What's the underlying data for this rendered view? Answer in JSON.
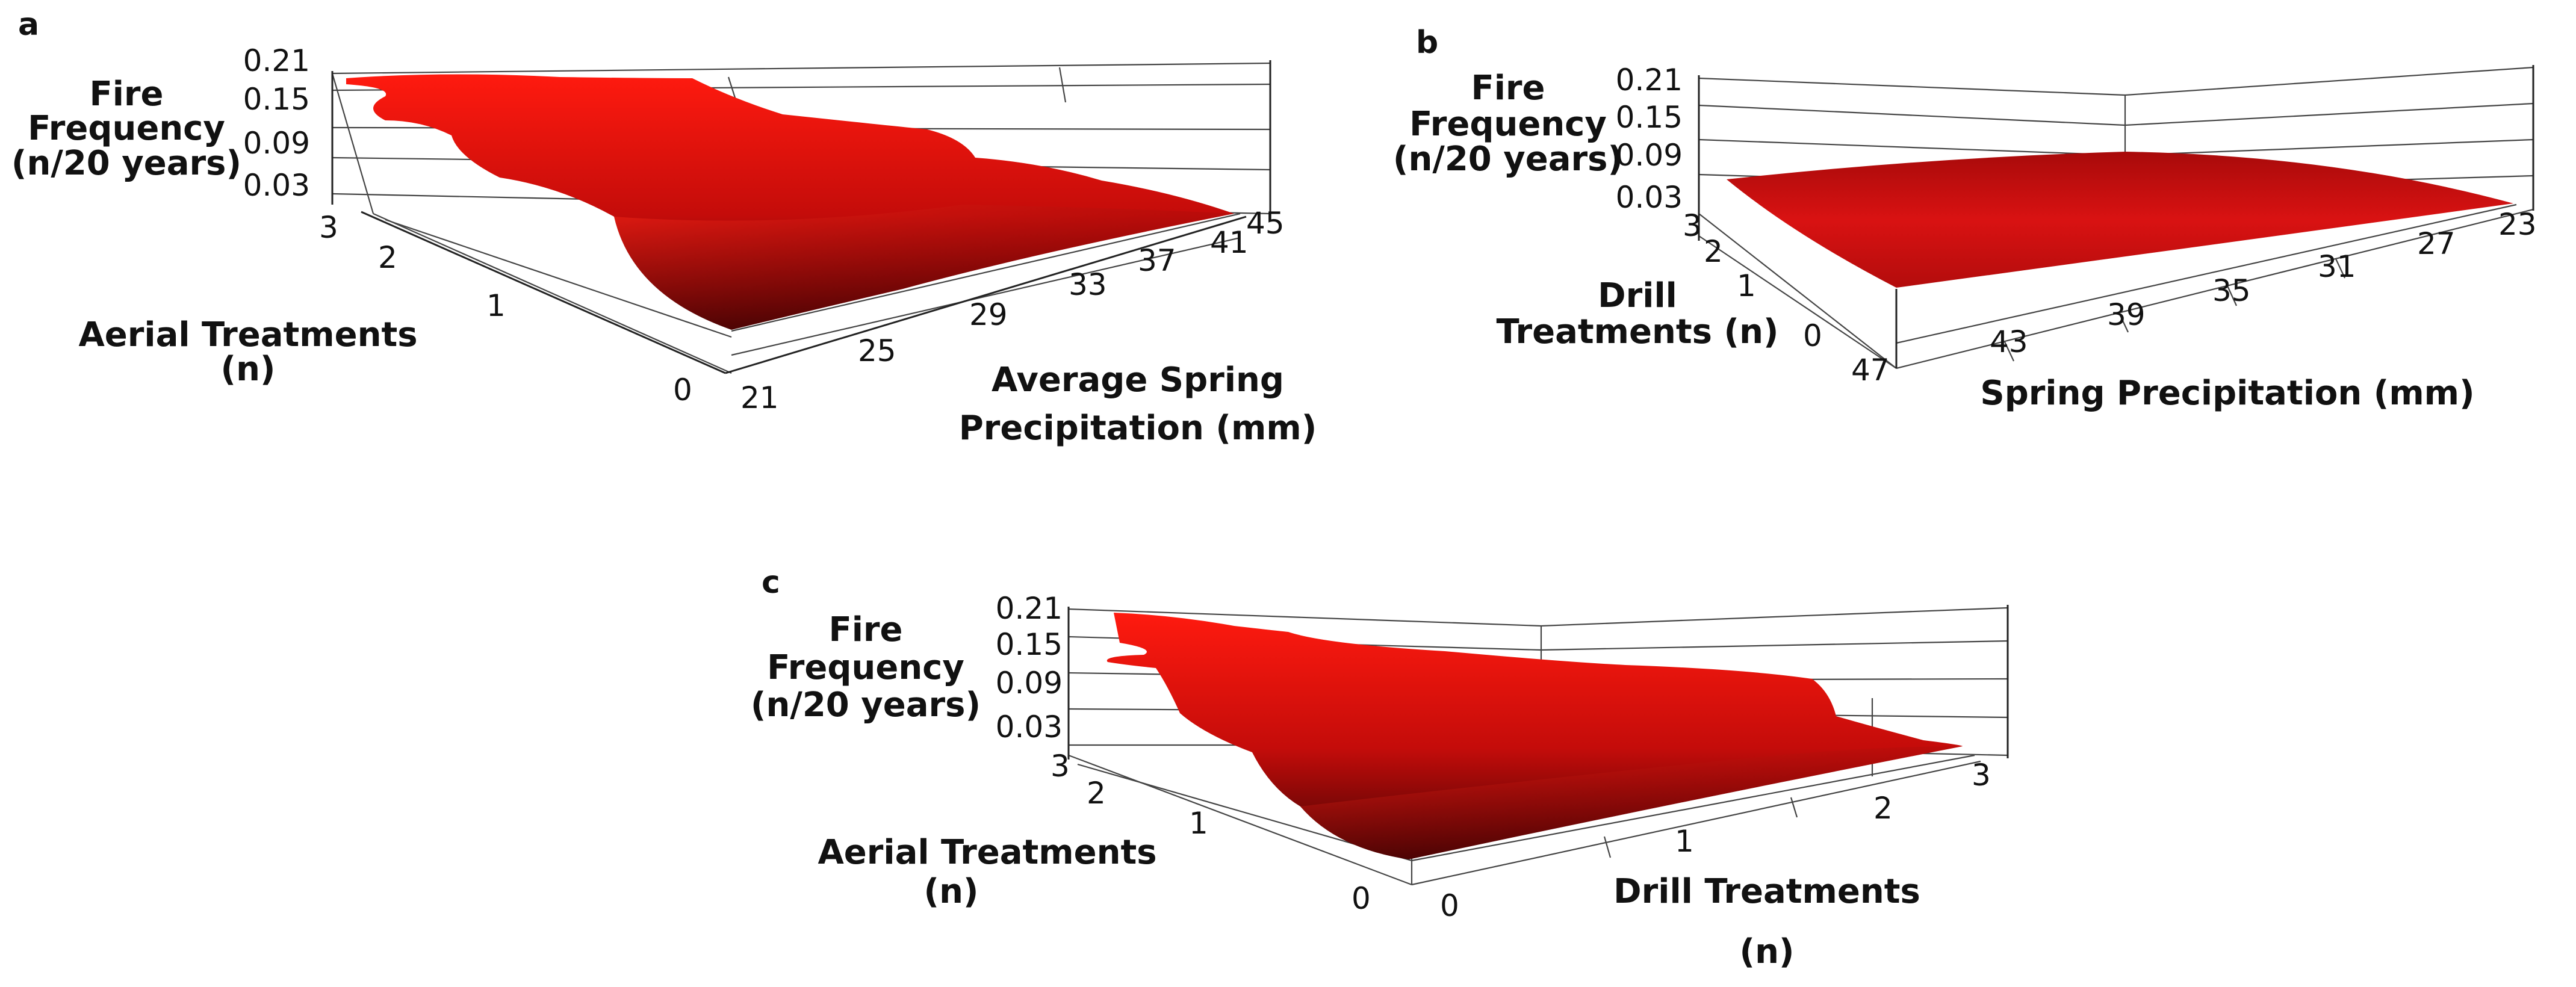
{
  "figure": {
    "panels": [
      "a",
      "b",
      "c"
    ]
  },
  "chart_data": [
    {
      "panel": "a",
      "type": "surface",
      "zlabel": [
        "Fire",
        "Frequency",
        "(n/20 years)"
      ],
      "zticks": [
        "0.21",
        "0.15",
        "0.09",
        "0.03"
      ],
      "zlim": [
        0,
        0.21
      ],
      "ylabel": [
        "Aerial Treatments",
        "(n)"
      ],
      "yticks": [
        "3",
        "2",
        "1",
        "0"
      ],
      "ylim": [
        0,
        3
      ],
      "xlabel": [
        "Average Spring",
        "Precipitation (mm)"
      ],
      "xticks": [
        "21",
        "25",
        "29",
        "33",
        "37",
        "41",
        "45"
      ],
      "xlim": [
        21,
        45
      ],
      "surface_color": "#e3140f",
      "surface_dark": "#3b0303"
    },
    {
      "panel": "b",
      "type": "surface",
      "zlabel": [
        "Fire",
        "Frequency",
        "(n/20 years)"
      ],
      "zticks": [
        "0.21",
        "0.15",
        "0.09",
        "0.03"
      ],
      "zlim": [
        0,
        0.21
      ],
      "ylabel": [
        "Drill",
        "Treatments (n)"
      ],
      "yticks": [
        "3",
        "2",
        "1",
        "0"
      ],
      "ylim": [
        0,
        3
      ],
      "xlabel": [
        "Spring Precipitation (mm)"
      ],
      "xticks": [
        "47",
        "43",
        "39",
        "35",
        "31",
        "27",
        "23"
      ],
      "xlim": [
        23,
        47
      ],
      "surface_color": "#d41010",
      "surface_dark": "#7a0808"
    },
    {
      "panel": "c",
      "type": "surface",
      "zlabel": [
        "Fire",
        "Frequency",
        "(n/20 years)"
      ],
      "zticks": [
        "0.21",
        "0.15",
        "0.09",
        "0.03"
      ],
      "zlim": [
        0,
        0.21
      ],
      "ylabel": [
        "Aerial Treatments",
        "(n)"
      ],
      "yticks": [
        "3",
        "2",
        "1",
        "0"
      ],
      "ylim": [
        0,
        3
      ],
      "xlabel": [
        "Drill Treatments",
        "(n)"
      ],
      "xticks": [
        "0",
        "1",
        "2",
        "3"
      ],
      "xlim": [
        0,
        3
      ],
      "surface_color": "#e3140f",
      "surface_dark": "#3b0303"
    }
  ]
}
